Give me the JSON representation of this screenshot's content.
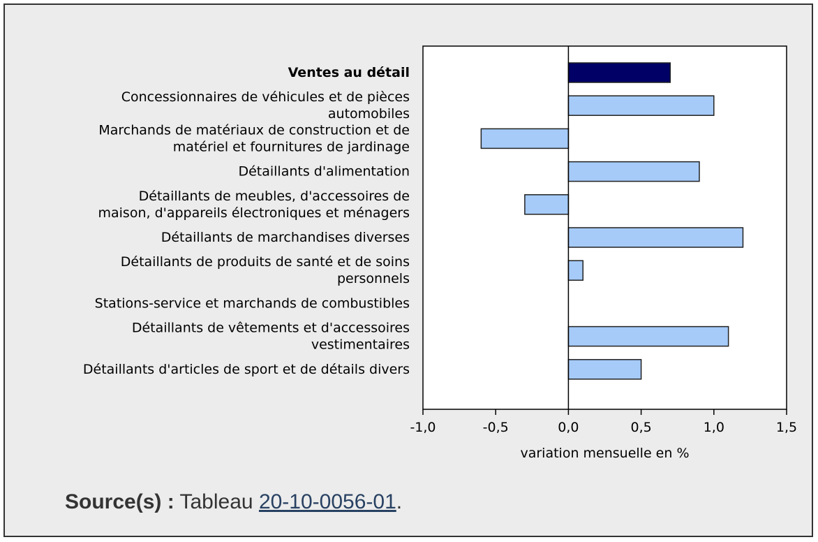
{
  "chart_data": {
    "type": "bar",
    "orientation": "horizontal",
    "categories": [
      "Ventes au détail",
      "Concessionnaires de véhicules et de pièces automobiles",
      "Marchands de matériaux de construction et de matériel et fournitures de jardinage",
      "Détaillants d'alimentation",
      "Détaillants de meubles, d'accessoires de maison, d'appareils électroniques et ménagers",
      "Détaillants de marchandises diverses",
      "Détaillants de produits de santé et de soins personnels",
      "Stations-service et marchands de combustibles",
      "Détaillants de vêtements et d'accessoires vestimentaires",
      "Détaillants d'articles de sport et de détails divers"
    ],
    "category_lines": [
      [
        "Ventes au détail"
      ],
      [
        "Concessionnaires de véhicules et de pièces",
        "automobiles"
      ],
      [
        "Marchands de matériaux de construction et de",
        "matériel et fournitures de jardinage"
      ],
      [
        "Détaillants d'alimentation"
      ],
      [
        "Détaillants de meubles, d'accessoires de",
        "maison, d'appareils électroniques et ménagers"
      ],
      [
        "Détaillants de marchandises diverses"
      ],
      [
        "Détaillants de produits de santé et de soins",
        "personnels"
      ],
      [
        "Stations-service et marchands de combustibles"
      ],
      [
        "Détaillants de vêtements et d'accessoires",
        "vestimentaires"
      ],
      [
        "Détaillants d'articles de sport et de détails divers"
      ]
    ],
    "values": [
      0.7,
      1.0,
      -0.6,
      0.9,
      -0.3,
      1.2,
      0.1,
      0.0,
      1.1,
      0.5
    ],
    "highlight_index": 0,
    "xlabel": "variation mensuelle en %",
    "ylabel": "",
    "title": "",
    "xlim": [
      -1.0,
      1.5
    ],
    "xticks": [
      -1.0,
      -0.5,
      0.0,
      0.5,
      1.0,
      1.5
    ],
    "xtick_labels": [
      "-1,0",
      "-0,5",
      "0,0",
      "0,5",
      "1,0",
      "1,5"
    ],
    "grid": false,
    "colors": {
      "highlight": "#000066",
      "bar": "#a6cbf9",
      "bar_border": "#222222",
      "plot_background": "#ffffff",
      "frame_background": "#ececec"
    }
  },
  "source": {
    "label": "Source(s) :",
    "text": "Tableau",
    "link_text": "20-10-0056-01",
    "suffix": "."
  }
}
